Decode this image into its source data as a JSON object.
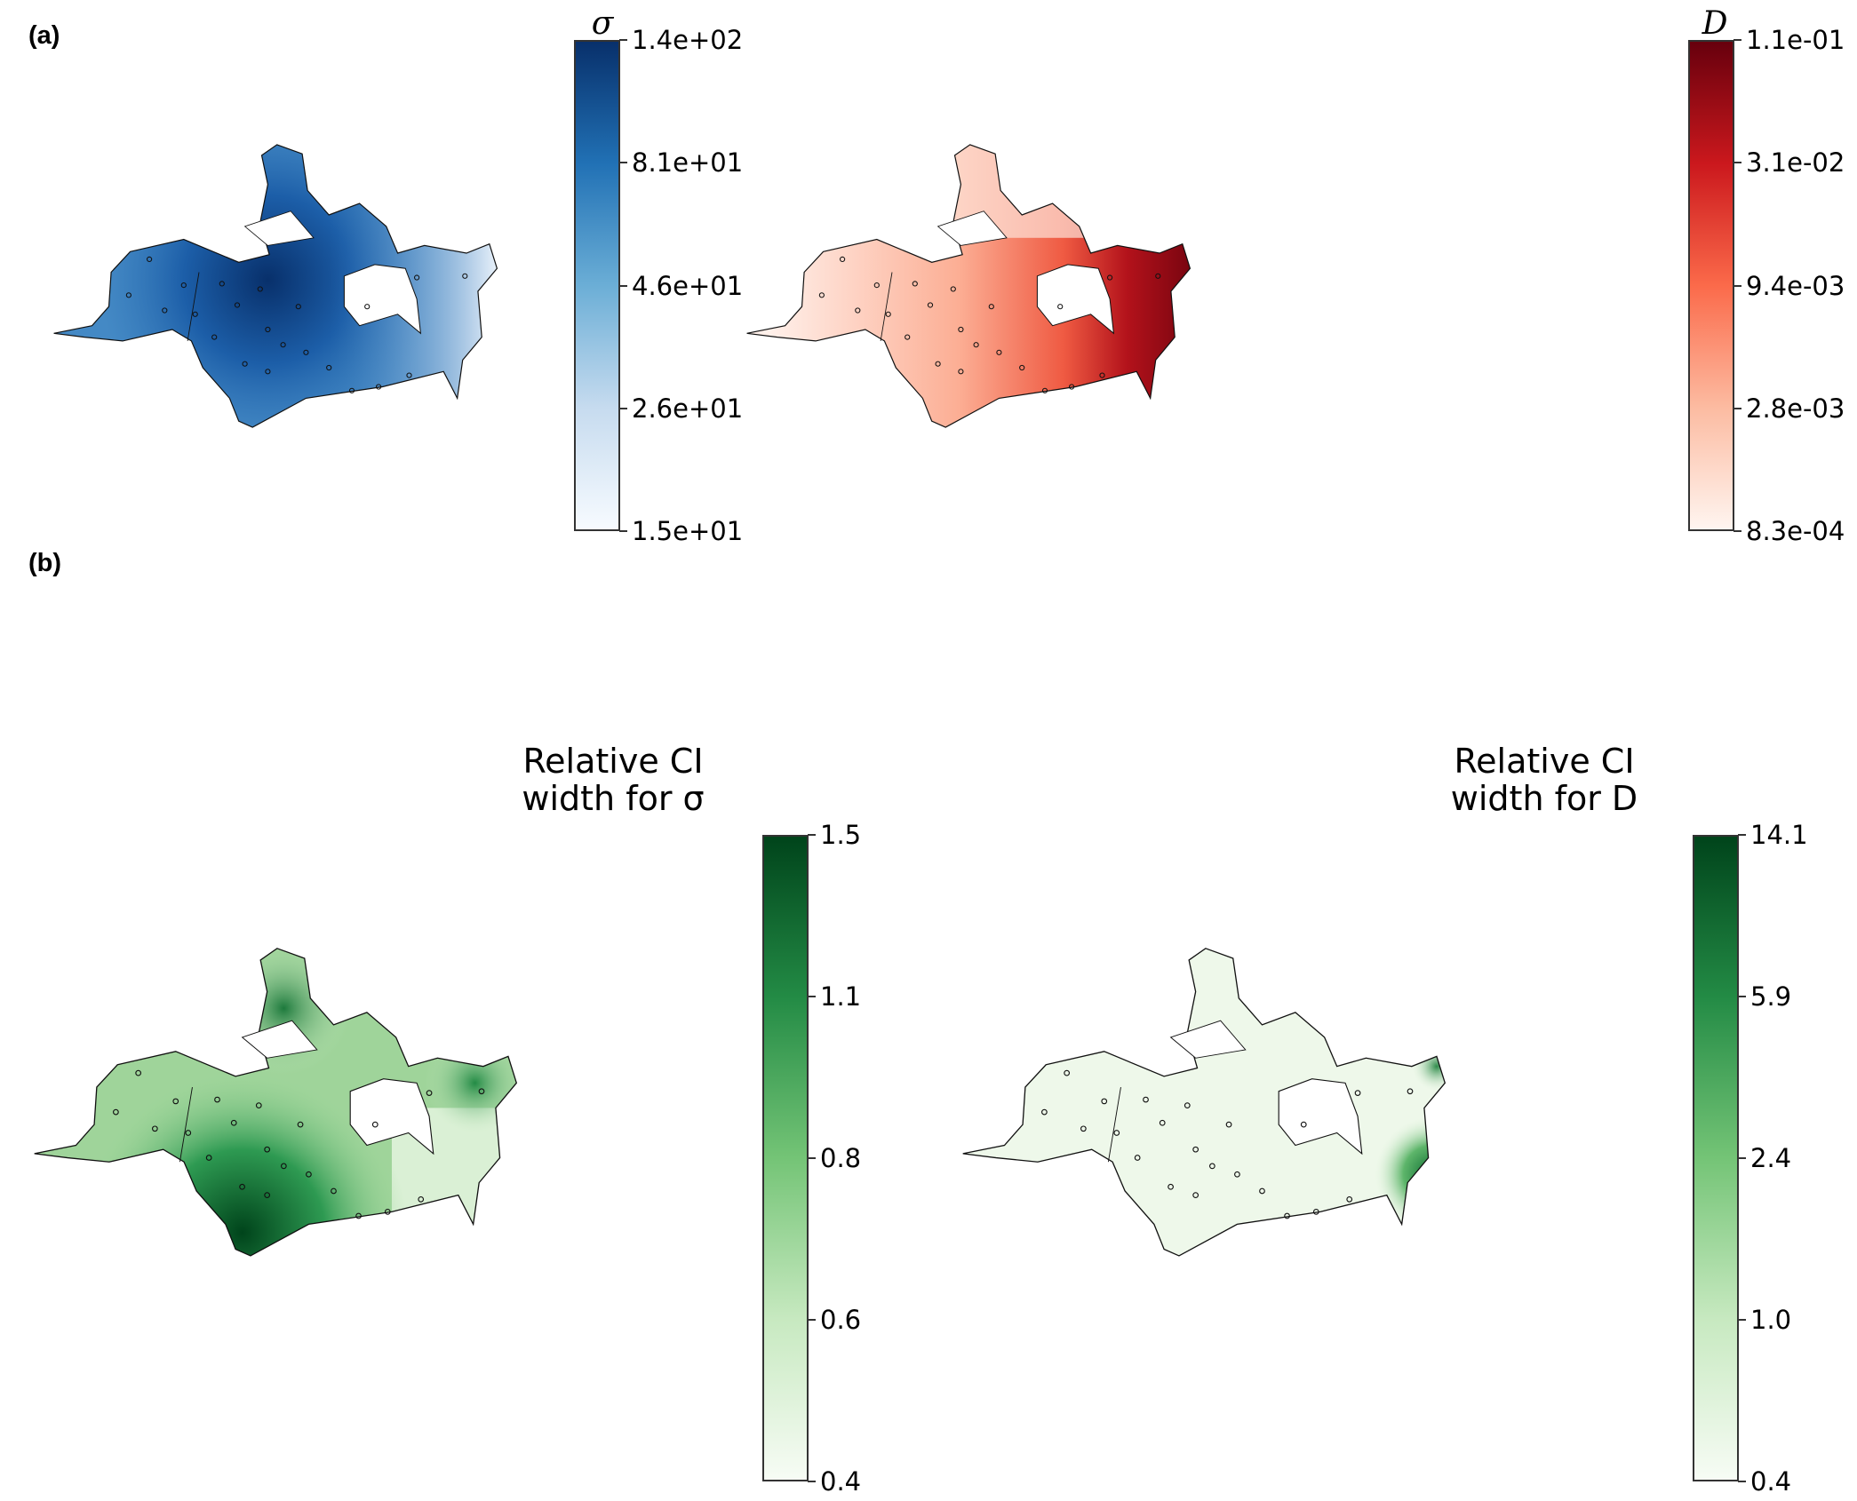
{
  "panels": {
    "a_label": "(a)",
    "b_label": "(b)"
  },
  "maps": [
    {
      "id": "sigma",
      "colorbar": {
        "title": "σ",
        "colors": [
          "#f7fbff",
          "#c6dbef",
          "#6baed6",
          "#2171b5",
          "#08306b"
        ],
        "ticks": [
          "1.5e+01",
          "2.6e+01",
          "4.6e+01",
          "8.1e+01",
          "1.4e+02"
        ]
      }
    },
    {
      "id": "D",
      "colorbar": {
        "title": "D",
        "colors": [
          "#fff5f0",
          "#fcbba1",
          "#fb6a4a",
          "#cb181d",
          "#67000d"
        ],
        "ticks": [
          "8.3e-04",
          "2.8e-03",
          "9.4e-03",
          "3.1e-02",
          "1.1e-01"
        ]
      }
    },
    {
      "id": "ci_sigma",
      "colorbar": {
        "title_line1": "Relative CI",
        "title_line2": "width for σ",
        "colors": [
          "#f7fcf5",
          "#c7e9c0",
          "#74c476",
          "#238b45",
          "#00441b"
        ],
        "ticks": [
          "0.4",
          "0.6",
          "0.8",
          "1.1",
          "1.5"
        ]
      }
    },
    {
      "id": "ci_D",
      "colorbar": {
        "title_line1": "Relative CI",
        "title_line2": "width for D",
        "colors": [
          "#f7fcf5",
          "#c7e9c0",
          "#74c476",
          "#238b45",
          "#00441b"
        ],
        "ticks": [
          "0.4",
          "1.0",
          "2.4",
          "5.9",
          "14.1"
        ]
      }
    }
  ]
}
